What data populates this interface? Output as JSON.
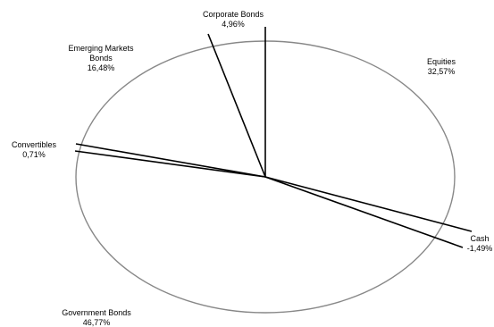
{
  "chart_data": {
    "type": "pie",
    "slices": [
      {
        "name": "Equities",
        "value": 32.57,
        "label": "32,57%"
      },
      {
        "name": "Cash",
        "value": -1.49,
        "label": "-1,49%"
      },
      {
        "name": "Government Bonds",
        "value": 46.77,
        "label": "46,77%"
      },
      {
        "name": "Convertibles",
        "value": 0.71,
        "label": "0,71%"
      },
      {
        "name": "Emerging Markets Bonds",
        "value": 16.48,
        "label": "16,48%"
      },
      {
        "name": "Corporate Bonds",
        "value": 4.96,
        "label": "4,96%"
      }
    ],
    "colors": {
      "outline": "#888888",
      "divider": "#000000",
      "fill": "#ffffff"
    }
  }
}
